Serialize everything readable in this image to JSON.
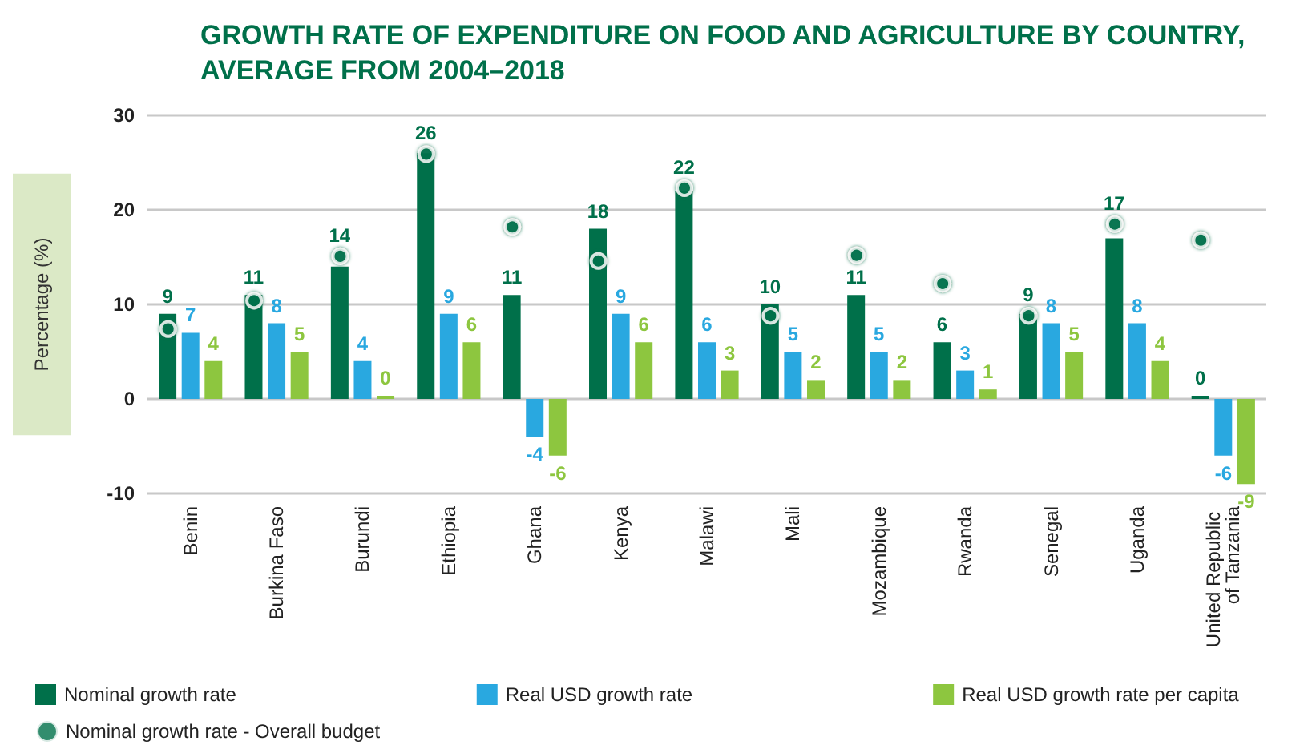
{
  "chart_data": {
    "type": "bar",
    "title": "GROWTH RATE OF EXPENDITURE ON FOOD AND AGRICULTURE BY COUNTRY,\nAVERAGE FROM 2004–2018",
    "ylabel": "Percentage (%)",
    "categories": [
      "Benin",
      "Burkina Faso",
      "Burundi",
      "Ethiopia",
      "Ghana",
      "Kenya",
      "Malawi",
      "Mali",
      "Mozambique",
      "Rwanda",
      "Senegal",
      "Uganda",
      "United Republic of Tanzania"
    ],
    "series": [
      {
        "name": "Nominal growth rate",
        "color": "#00704a",
        "values": [
          9,
          11,
          14,
          26,
          11,
          18,
          22,
          10,
          11,
          6,
          9,
          17,
          0
        ],
        "value_labels": [
          "9",
          "11",
          "14",
          "26",
          "11",
          "18",
          "22",
          "10",
          "11",
          "6",
          "9",
          "17",
          "0"
        ]
      },
      {
        "name": "Real USD growth rate",
        "color": "#29a8e0",
        "values": [
          7,
          8,
          4,
          9,
          -4,
          9,
          6,
          5,
          5,
          3,
          8,
          8,
          -6
        ],
        "value_labels": [
          "7",
          "8",
          "4",
          "9",
          "-4",
          "9",
          "6",
          "5",
          "5",
          "3",
          "8",
          "8",
          "-6"
        ]
      },
      {
        "name": "Real USD growth rate per capita",
        "color": "#8dc63f",
        "values": [
          4,
          5,
          0,
          6,
          -6,
          6,
          3,
          2,
          2,
          1,
          5,
          4,
          -9
        ],
        "value_labels": [
          "4",
          "5",
          "0",
          "6",
          "-6",
          "6",
          "3",
          "2",
          "2",
          "1",
          "5",
          "4",
          "-9"
        ]
      },
      {
        "name": "Nominal growth rate - Overall budget",
        "type": "scatter",
        "color": "#00704a",
        "marker": "circle",
        "values": [
          7.4,
          10.4,
          15.1,
          25.9,
          18.2,
          14.6,
          22.3,
          8.8,
          15.2,
          12.2,
          8.8,
          18.5,
          16.8
        ]
      }
    ],
    "ylim": [
      -10,
      30
    ],
    "yticks": [
      -10,
      0,
      10,
      20,
      30
    ],
    "grid": "y",
    "legend": "bottom"
  }
}
